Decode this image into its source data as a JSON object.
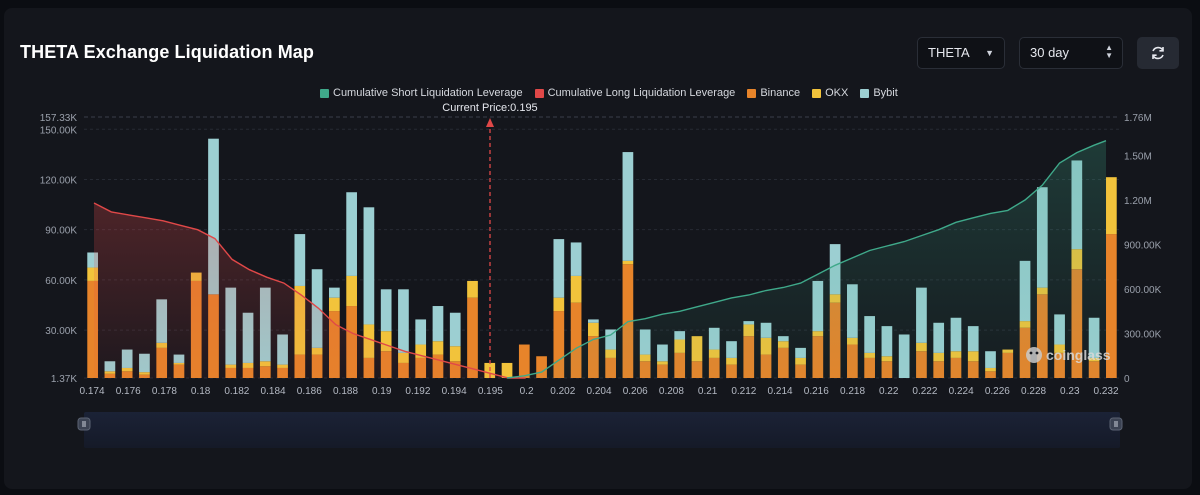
{
  "header": {
    "title": "THETA Exchange Liquidation Map",
    "coin_select": "THETA",
    "period_select": "30 day",
    "refresh_icon": "refresh-icon"
  },
  "colors": {
    "short_cum": "#3fa98a",
    "long_cum": "#e04848",
    "binance": "#e7842a",
    "okx": "#f2c33b",
    "bybit": "#9ccfd2",
    "current_price_line": "#e04848"
  },
  "chart_data": {
    "type": "bar",
    "current_price_label": "Current Price:0.195",
    "current_price": 0.195,
    "legend": [
      "Cumulative Short Liquidation Leverage",
      "Cumulative Long Liquidation Leverage",
      "Binance",
      "OKX",
      "Bybit"
    ],
    "legend_position": "top-center",
    "grid": true,
    "x_tick_labels": [
      "0.174",
      "0.176",
      "0.178",
      "0.18",
      "0.182",
      "0.184",
      "0.186",
      "0.188",
      "0.19",
      "0.192",
      "0.194",
      "0.195",
      "0.2",
      "0.202",
      "0.204",
      "0.206",
      "0.208",
      "0.21",
      "0.212",
      "0.214",
      "0.216",
      "0.218",
      "0.22",
      "0.222",
      "0.224",
      "0.226",
      "0.228",
      "0.23",
      "0.232"
    ],
    "y_left_ticks": [
      "157.33K",
      "150.00K",
      "120.00K",
      "90.00K",
      "60.00K",
      "30.00K",
      "1.37K"
    ],
    "y_left_range": [
      1370,
      157330
    ],
    "y_right_ticks": [
      "1.76M",
      "1.50M",
      "1.20M",
      "900.00K",
      "600.00K",
      "300.00K",
      "0"
    ],
    "y_right_range": [
      0,
      1760000
    ],
    "bars": [
      {
        "binance": 58000,
        "okx": 8000,
        "bybit": 9000
      },
      {
        "binance": 2500,
        "okx": 1500,
        "bybit": 6000
      },
      {
        "binance": 4000,
        "okx": 2000,
        "bybit": 11000
      },
      {
        "binance": 2000,
        "okx": 1500,
        "bybit": 11000
      },
      {
        "binance": 18000,
        "okx": 3000,
        "bybit": 26000
      },
      {
        "binance": 8000,
        "okx": 1000,
        "bybit": 5000
      },
      {
        "binance": 58000,
        "okx": 5000,
        "bybit": 0
      },
      {
        "binance": 50000,
        "okx": 0,
        "bybit": 93000
      },
      {
        "binance": 6000,
        "okx": 2000,
        "bybit": 46000
      },
      {
        "binance": 6000,
        "okx": 3000,
        "bybit": 30000
      },
      {
        "binance": 7000,
        "okx": 3000,
        "bybit": 44000
      },
      {
        "binance": 6000,
        "okx": 2000,
        "bybit": 18000
      },
      {
        "binance": 14000,
        "okx": 41000,
        "bybit": 31000
      },
      {
        "binance": 14000,
        "okx": 4000,
        "bybit": 47000
      },
      {
        "binance": 40000,
        "okx": 8000,
        "bybit": 6000
      },
      {
        "binance": 43000,
        "okx": 18000,
        "bybit": 50000
      },
      {
        "binance": 12000,
        "okx": 20000,
        "bybit": 70000
      },
      {
        "binance": 16000,
        "okx": 12000,
        "bybit": 25000
      },
      {
        "binance": 9000,
        "okx": 6000,
        "bybit": 38000
      },
      {
        "binance": 12000,
        "okx": 8000,
        "bybit": 15000
      },
      {
        "binance": 14000,
        "okx": 8000,
        "bybit": 21000
      },
      {
        "binance": 10000,
        "okx": 9000,
        "bybit": 20000
      },
      {
        "binance": 48000,
        "okx": 10000,
        "bybit": 0
      },
      {
        "binance": 0,
        "okx": 9000,
        "bybit": 0
      },
      {
        "binance": 0,
        "okx": 9000,
        "bybit": 0
      },
      {
        "binance": 20000,
        "okx": 0,
        "bybit": 0
      },
      {
        "binance": 13000,
        "okx": 0,
        "bybit": 0
      },
      {
        "binance": 40000,
        "okx": 8000,
        "bybit": 35000
      },
      {
        "binance": 45000,
        "okx": 16000,
        "bybit": 20000
      },
      {
        "binance": 25000,
        "okx": 8000,
        "bybit": 2000
      },
      {
        "binance": 12000,
        "okx": 5000,
        "bybit": 12000
      },
      {
        "binance": 68000,
        "okx": 2000,
        "bybit": 65000
      },
      {
        "binance": 10000,
        "okx": 4000,
        "bybit": 15000
      },
      {
        "binance": 8000,
        "okx": 2000,
        "bybit": 10000
      },
      {
        "binance": 15000,
        "okx": 8000,
        "bybit": 5000
      },
      {
        "binance": 10000,
        "okx": 15000,
        "bybit": 0
      },
      {
        "binance": 12000,
        "okx": 5000,
        "bybit": 13000
      },
      {
        "binance": 8000,
        "okx": 4000,
        "bybit": 10000
      },
      {
        "binance": 25000,
        "okx": 7000,
        "bybit": 2000
      },
      {
        "binance": 14000,
        "okx": 10000,
        "bybit": 9000
      },
      {
        "binance": 18000,
        "okx": 4000,
        "bybit": 3000
      },
      {
        "binance": 8000,
        "okx": 4000,
        "bybit": 6000
      },
      {
        "binance": 25000,
        "okx": 3000,
        "bybit": 30000
      },
      {
        "binance": 45000,
        "okx": 5000,
        "bybit": 30000
      },
      {
        "binance": 20000,
        "okx": 4000,
        "bybit": 32000
      },
      {
        "binance": 12000,
        "okx": 3000,
        "bybit": 22000
      },
      {
        "binance": 10000,
        "okx": 3000,
        "bybit": 18000
      },
      {
        "binance": 0,
        "okx": 0,
        "bybit": 26000
      },
      {
        "binance": 16000,
        "okx": 5000,
        "bybit": 33000
      },
      {
        "binance": 10000,
        "okx": 5000,
        "bybit": 18000
      },
      {
        "binance": 12000,
        "okx": 4000,
        "bybit": 20000
      },
      {
        "binance": 10000,
        "okx": 6000,
        "bybit": 15000
      },
      {
        "binance": 4000,
        "okx": 2000,
        "bybit": 10000
      },
      {
        "binance": 15000,
        "okx": 2000,
        "bybit": 0
      },
      {
        "binance": 30000,
        "okx": 4000,
        "bybit": 36000
      },
      {
        "binance": 50000,
        "okx": 4000,
        "bybit": 60000
      },
      {
        "binance": 15000,
        "okx": 5000,
        "bybit": 18000
      },
      {
        "binance": 65000,
        "okx": 12000,
        "bybit": 53000
      },
      {
        "binance": 10000,
        "okx": 2000,
        "bybit": 24000
      },
      {
        "binance": 86000,
        "okx": 34000,
        "bybit": 0
      }
    ],
    "cum_long": [
      1180000,
      1120000,
      1100000,
      1080000,
      1060000,
      1030000,
      1000000,
      940000,
      800000,
      730000,
      680000,
      640000,
      560000,
      470000,
      360000,
      300000,
      260000,
      220000,
      180000,
      150000,
      120000,
      90000,
      60000,
      30000,
      0,
      0
    ],
    "cum_short": [
      0,
      15000,
      40000,
      120000,
      200000,
      260000,
      290000,
      380000,
      400000,
      430000,
      450000,
      480000,
      510000,
      540000,
      560000,
      590000,
      610000,
      640000,
      700000,
      760000,
      810000,
      860000,
      890000,
      920000,
      960000,
      1000000,
      1050000,
      1080000,
      1110000,
      1130000,
      1200000,
      1300000,
      1450000,
      1520000,
      1570000,
      1600000
    ],
    "short_start_index": 24
  }
}
